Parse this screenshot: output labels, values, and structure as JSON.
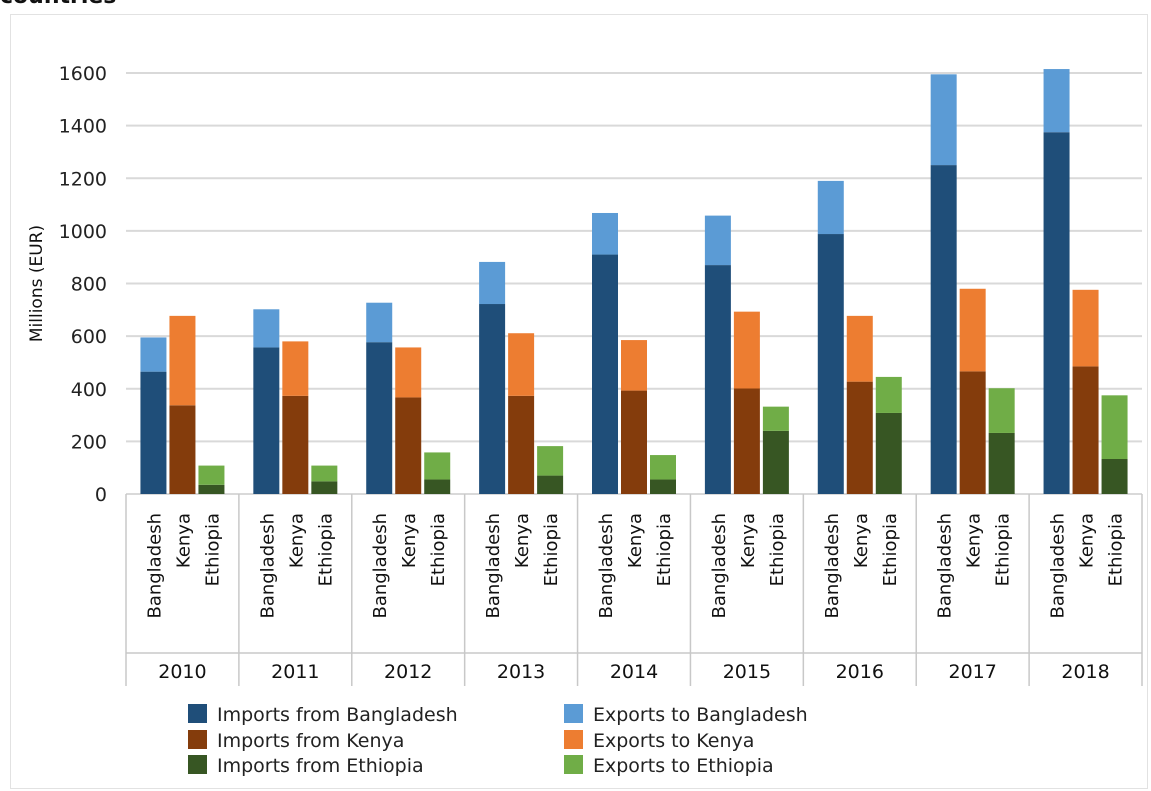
{
  "page_title": "countries",
  "chart_data": {
    "type": "bar",
    "stacked": true,
    "ylabel": "Millions (EUR)",
    "ylim": [
      0,
      1600
    ],
    "yticks": [
      0,
      200,
      400,
      600,
      800,
      1000,
      1200,
      1400,
      1600
    ],
    "grid": true,
    "legend_position": "bottom",
    "years": [
      "2010",
      "2011",
      "2012",
      "2013",
      "2014",
      "2015",
      "2016",
      "2017",
      "2018"
    ],
    "countries": [
      "Bangladesh",
      "Kenya",
      "Ethiopia"
    ],
    "series": [
      {
        "name": "Imports from Bangladesh",
        "country": "Bangladesh",
        "kind": "imports",
        "color": "#1f4e79",
        "values": [
          465,
          557,
          577,
          722,
          910,
          870,
          988,
          1250,
          1375
        ]
      },
      {
        "name": "Exports to Bangladesh",
        "country": "Bangladesh",
        "kind": "exports",
        "color": "#5b9bd5",
        "values": [
          130,
          145,
          150,
          160,
          158,
          188,
          202,
          345,
          240
        ]
      },
      {
        "name": "Imports from Kenya",
        "country": "Kenya",
        "kind": "imports",
        "color": "#843c0c",
        "values": [
          337,
          373,
          367,
          373,
          393,
          401,
          427,
          466,
          485
        ]
      },
      {
        "name": "Exports to Kenya",
        "country": "Kenya",
        "kind": "exports",
        "color": "#ed7d31",
        "values": [
          340,
          207,
          190,
          238,
          192,
          292,
          250,
          314,
          291
        ]
      },
      {
        "name": "Imports from Ethiopia",
        "country": "Ethiopia",
        "kind": "imports",
        "color": "#375623",
        "values": [
          35,
          48,
          55,
          70,
          55,
          240,
          308,
          232,
          133
        ]
      },
      {
        "name": "Exports to Ethiopia",
        "country": "Ethiopia",
        "kind": "exports",
        "color": "#70ad47",
        "values": [
          73,
          60,
          103,
          112,
          93,
          92,
          137,
          170,
          242
        ]
      }
    ]
  }
}
